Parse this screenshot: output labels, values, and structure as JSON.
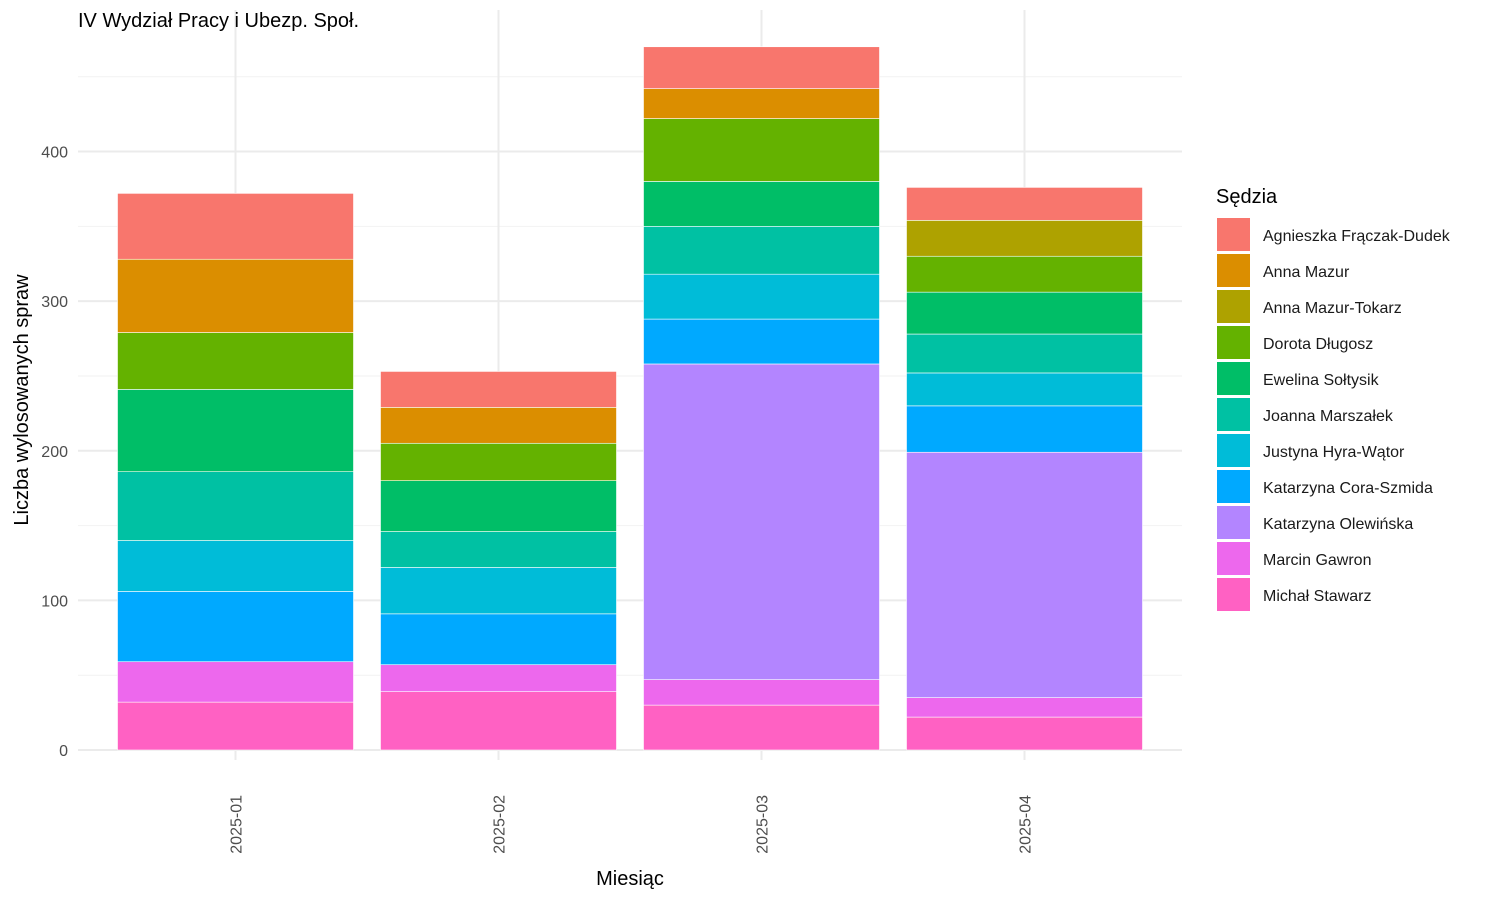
{
  "chart_data": {
    "type": "bar",
    "stacked": true,
    "title": "IV Wydział Pracy i Ubezp. Społ.",
    "xlabel": "Miesiąc",
    "ylabel": "Liczba wylosowanych spraw",
    "ylim": [
      0,
      475
    ],
    "yticks": [
      0,
      100,
      200,
      300,
      400
    ],
    "grid": true,
    "x_tick_rotation": "vertical",
    "categories": [
      "2025-01",
      "2025-02",
      "2025-03",
      "2025-04"
    ],
    "legend": {
      "title": "Sędzia",
      "position": "right"
    },
    "series": [
      {
        "name": "Michał Stawarz",
        "color": "#FF61C3",
        "values": [
          32,
          39,
          30,
          22
        ]
      },
      {
        "name": "Marcin Gawron",
        "color": "#ED68ED",
        "values": [
          27,
          18,
          17,
          13
        ]
      },
      {
        "name": "Katarzyna Olewińska",
        "color": "#B385FF",
        "values": [
          0,
          0,
          211,
          164
        ]
      },
      {
        "name": "Katarzyna Cora-Szmida",
        "color": "#00A9FF",
        "values": [
          47,
          34,
          30,
          31
        ]
      },
      {
        "name": "Justyna Hyra-Wątor",
        "color": "#00BCD8",
        "values": [
          34,
          31,
          30,
          22
        ]
      },
      {
        "name": "Joanna Marszałek",
        "color": "#00C1A3",
        "values": [
          46,
          24,
          32,
          26
        ]
      },
      {
        "name": "Ewelina Sołtysik",
        "color": "#00BE67",
        "values": [
          55,
          34,
          30,
          28
        ]
      },
      {
        "name": "Dorota Długosz",
        "color": "#64B200",
        "values": [
          38,
          25,
          42,
          24
        ]
      },
      {
        "name": "Anna Mazur-Tokarz",
        "color": "#AEA200",
        "values": [
          0,
          0,
          0,
          24
        ]
      },
      {
        "name": "Anna Mazur",
        "color": "#DB8E00",
        "values": [
          49,
          24,
          20,
          0
        ]
      },
      {
        "name": "Agnieszka Frączak-Dudek",
        "color": "#F8766D",
        "values": [
          44,
          24,
          28,
          22
        ]
      }
    ]
  }
}
